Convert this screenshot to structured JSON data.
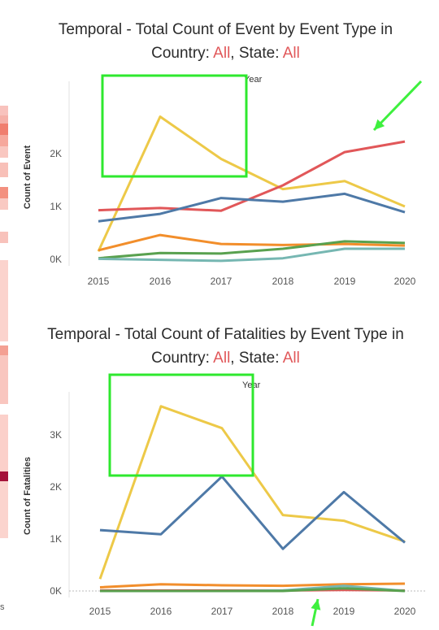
{
  "charts": [
    {
      "title_line1": "Temporal - Total Count of Event by Event Type  in",
      "title_line2_prefix": "Country:",
      "country_value": "All",
      "title_line2_mid": ", State:",
      "state_value": "All",
      "header_label": "Year",
      "ylabel": "Count of Event"
    },
    {
      "title_line1": "Temporal - Total Count of Fatalities by Event Type  in",
      "title_line2_prefix": "Country:",
      "country_value": "All",
      "title_line2_mid": ", State:",
      "state_value": "All",
      "header_label": "Year",
      "ylabel": "Count of Fatalities"
    }
  ],
  "left_fragment": "s",
  "colors": {
    "yellow": "#edc948",
    "red": "#e15759",
    "blue": "#4e79a7",
    "orange": "#f28e2b",
    "green": "#59a14f",
    "teal": "#76b7b2",
    "highlight_box": "#2ee82e",
    "arrow": "#3ef03e",
    "filter_value": "#e15759"
  },
  "chart_data": [
    {
      "type": "line",
      "title": "Temporal - Total Count of Event by Event Type  in Country: All, State: All",
      "xlabel": "Year",
      "ylabel": "Count of Event",
      "x": [
        "2015",
        "2016",
        "2017",
        "2018",
        "2019",
        "2020"
      ],
      "yticks": [
        0,
        1000,
        2000
      ],
      "ytick_labels": [
        "0K",
        "1K",
        "2K"
      ],
      "ylim": [
        0,
        2800
      ],
      "grid": false,
      "series": [
        {
          "color": "yellow",
          "values": [
            150,
            2700,
            1900,
            1330,
            1480,
            1000
          ]
        },
        {
          "color": "red",
          "values": [
            930,
            970,
            920,
            1400,
            2030,
            2230
          ]
        },
        {
          "color": "blue",
          "values": [
            720,
            860,
            1160,
            1090,
            1240,
            890
          ]
        },
        {
          "color": "orange",
          "values": [
            170,
            460,
            290,
            270,
            290,
            260
          ]
        },
        {
          "color": "green",
          "values": [
            20,
            120,
            110,
            200,
            340,
            310
          ]
        },
        {
          "color": "teal",
          "values": [
            10,
            -10,
            -30,
            20,
            200,
            200
          ]
        }
      ]
    },
    {
      "type": "line",
      "title": "Temporal - Total Count of Fatalities by Event Type  in Country: All, State: All",
      "xlabel": "Year",
      "ylabel": "Count of Fatalities",
      "x": [
        "2015",
        "2016",
        "2017",
        "2018",
        "2019",
        "2020"
      ],
      "yticks": [
        0,
        1000,
        2000,
        3000
      ],
      "ytick_labels": [
        "0K",
        "1K",
        "2K",
        "3K"
      ],
      "ylim": [
        0,
        3900
      ],
      "grid": false,
      "series": [
        {
          "color": "yellow",
          "values": [
            230,
            3550,
            3130,
            1460,
            1350,
            950
          ]
        },
        {
          "color": "blue",
          "values": [
            1170,
            1090,
            2200,
            810,
            1900,
            930
          ]
        },
        {
          "color": "orange",
          "values": [
            70,
            130,
            110,
            100,
            130,
            140
          ]
        },
        {
          "color": "red",
          "values": [
            10,
            10,
            10,
            10,
            20,
            10
          ]
        },
        {
          "color": "teal",
          "values": [
            0,
            0,
            0,
            10,
            100,
            0
          ]
        },
        {
          "color": "green",
          "values": [
            0,
            0,
            0,
            0,
            50,
            0
          ]
        }
      ]
    }
  ]
}
